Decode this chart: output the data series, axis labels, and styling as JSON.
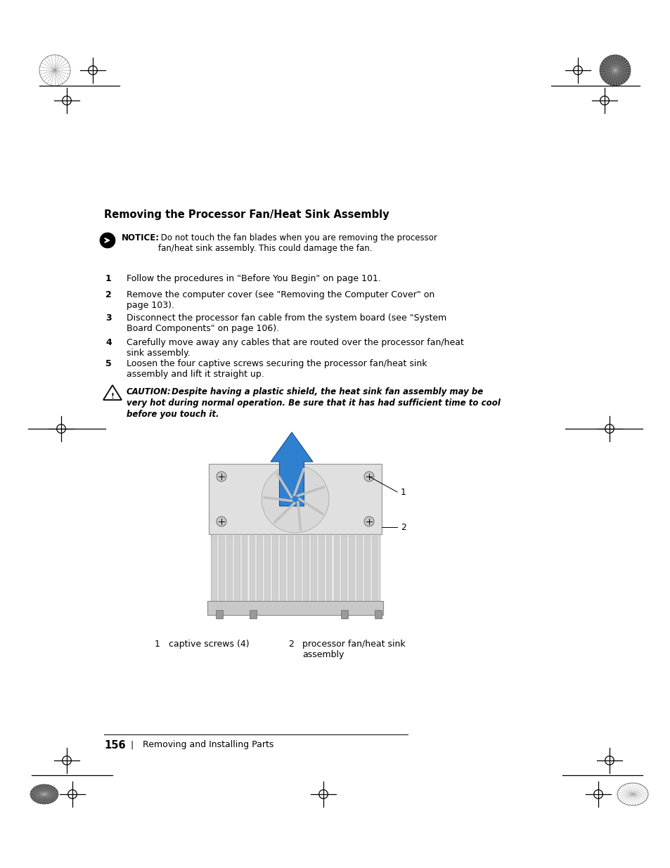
{
  "bg_color": "#ffffff",
  "title_text": "Removing the Processor Fan/Heat Sink Assembly",
  "notice_bold": "NOTICE:",
  "notice_text": " Do not touch the fan blades when you are removing the processor\nfan/heat sink assembly. This could damage the fan.",
  "step1": "Follow the procedures in \"Before You Begin\" on page 101.",
  "step2": "Remove the computer cover (see \"Removing the Computer Cover\" on\npage 103).",
  "step3": "Disconnect the processor fan cable from the system board (see \"System\nBoard Components\" on page 106).",
  "step4": "Carefully move away any cables that are routed over the processor fan/heat\nsink assembly.",
  "step5": "Loosen the four captive screws securing the processor fan/heat sink\nassembly and lift it straight up.",
  "caution_bold": "CAUTION:",
  "caution_text": " Despite having a plastic shield, the heat sink fan assembly may be\nvery hot during normal operation. Be sure that it has had sufficient time to cool\nbefore you touch it.",
  "label1_num": "1",
  "label1_text": "captive screws (4)",
  "label2_num": "2",
  "label2_text": "processor fan/heat sink\nassembly",
  "page_num": "156",
  "page_text": "Removing and Installing Parts",
  "arrow_color": "#3080d0",
  "arrow_edge_color": "#1a5090"
}
